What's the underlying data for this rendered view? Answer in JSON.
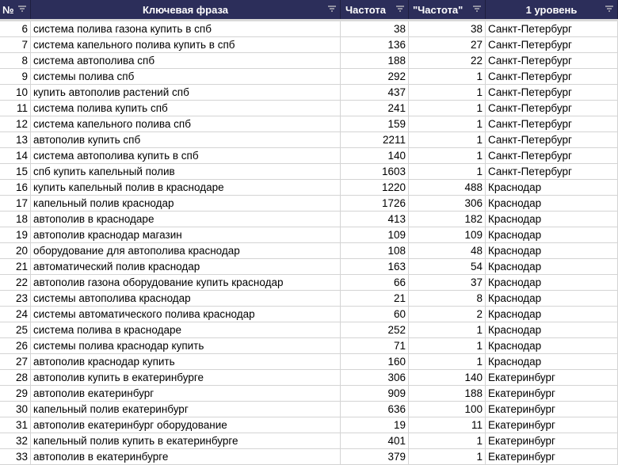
{
  "header": {
    "num": "№",
    "phrase": "Ключевая фраза",
    "freq": "Частота",
    "freq_exact": "\"Частота\"",
    "level": "1 уровень"
  },
  "colors": {
    "header_bg": "#2c2e5a"
  },
  "rows": [
    [
      "6",
      "система полива газона купить в спб",
      "38",
      "38",
      "Санкт-Петербург"
    ],
    [
      "7",
      "система капельного полива купить в спб",
      "136",
      "27",
      "Санкт-Петербург"
    ],
    [
      "8",
      "система автополива спб",
      "188",
      "22",
      "Санкт-Петербург"
    ],
    [
      "9",
      "системы полива спб",
      "292",
      "1",
      "Санкт-Петербург"
    ],
    [
      "10",
      "купить автополив растений спб",
      "437",
      "1",
      "Санкт-Петербург"
    ],
    [
      "11",
      "система полива купить спб",
      "241",
      "1",
      "Санкт-Петербург"
    ],
    [
      "12",
      "система капельного полива спб",
      "159",
      "1",
      "Санкт-Петербург"
    ],
    [
      "13",
      "автополив купить спб",
      "2211",
      "1",
      "Санкт-Петербург"
    ],
    [
      "14",
      "система автополива купить в спб",
      "140",
      "1",
      "Санкт-Петербург"
    ],
    [
      "15",
      "спб купить капельный полив",
      "1603",
      "1",
      "Санкт-Петербург"
    ],
    [
      "16",
      "купить капельный полив в краснодаре",
      "1220",
      "488",
      "Краснодар"
    ],
    [
      "17",
      "капельный полив краснодар",
      "1726",
      "306",
      "Краснодар"
    ],
    [
      "18",
      "автополив в краснодаре",
      "413",
      "182",
      "Краснодар"
    ],
    [
      "19",
      "автополив краснодар магазин",
      "109",
      "109",
      "Краснодар"
    ],
    [
      "20",
      "оборудование для автополива краснодар",
      "108",
      "48",
      "Краснодар"
    ],
    [
      "21",
      "автоматический полив краснодар",
      "163",
      "54",
      "Краснодар"
    ],
    [
      "22",
      "автополив газона оборудование купить краснодар",
      "66",
      "37",
      "Краснодар"
    ],
    [
      "23",
      "системы автополива краснодар",
      "21",
      "8",
      "Краснодар"
    ],
    [
      "24",
      "системы автоматического полива краснодар",
      "60",
      "2",
      "Краснодар"
    ],
    [
      "25",
      "система полива в краснодаре",
      "252",
      "1",
      "Краснодар"
    ],
    [
      "26",
      "системы полива краснодар купить",
      "71",
      "1",
      "Краснодар"
    ],
    [
      "27",
      "автополив краснодар купить",
      "160",
      "1",
      "Краснодар"
    ],
    [
      "28",
      "автополив купить в екатеринбурге",
      "306",
      "140",
      "Екатеринбург"
    ],
    [
      "29",
      "автополив екатеринбург",
      "909",
      "188",
      "Екатеринбург"
    ],
    [
      "30",
      "капельный полив екатеринбург",
      "636",
      "100",
      "Екатеринбург"
    ],
    [
      "31",
      "автополив екатеринбург оборудование",
      "19",
      "11",
      "Екатеринбург"
    ],
    [
      "32",
      "капельный полив купить в екатеринбурге",
      "401",
      "1",
      "Екатеринбург"
    ],
    [
      "33",
      "автополив в екатеринбурге",
      "379",
      "1",
      "Екатеринбург"
    ]
  ]
}
